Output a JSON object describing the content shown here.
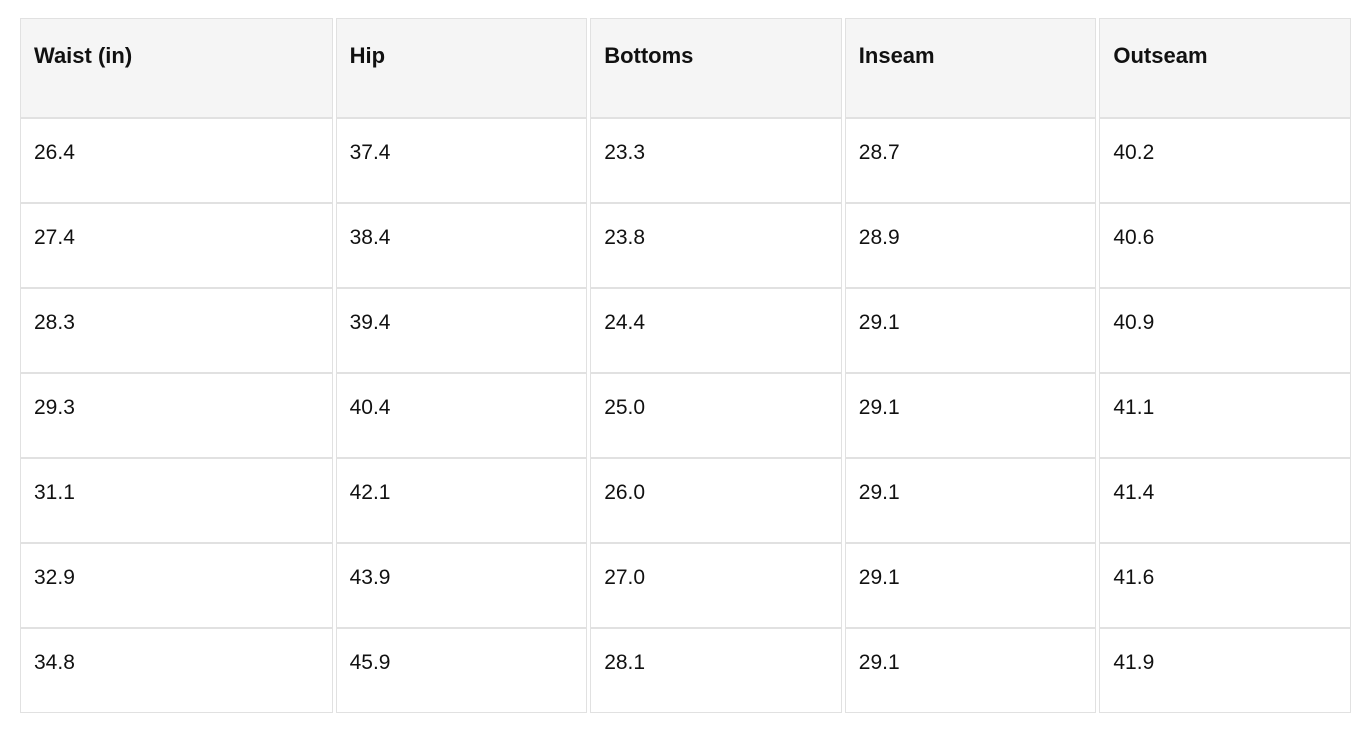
{
  "page": {
    "background": "#ffffff"
  },
  "table": {
    "kind": "size-chart",
    "headers": [
      "Waist (in)",
      "Hip",
      "Bottoms",
      "Inseam",
      "Outseam"
    ],
    "rows": [
      [
        "26.4",
        "37.4",
        "23.3",
        "28.7",
        "40.2"
      ],
      [
        "27.4",
        "38.4",
        "23.8",
        "28.9",
        "40.6"
      ],
      [
        "28.3",
        "39.4",
        "24.4",
        "29.1",
        "40.9"
      ],
      [
        "29.3",
        "40.4",
        "25.0",
        "29.1",
        "41.1"
      ],
      [
        "31.1",
        "42.1",
        "26.0",
        "29.1",
        "41.4"
      ],
      [
        "32.9",
        "43.9",
        "27.0",
        "29.1",
        "41.6"
      ],
      [
        "34.8",
        "45.9",
        "28.1",
        "29.1",
        "41.9"
      ]
    ],
    "colors": {
      "header_bg": "#f5f5f5",
      "cell_bg": "#ffffff",
      "border": "#e1e1e1",
      "text": "#111111"
    }
  }
}
